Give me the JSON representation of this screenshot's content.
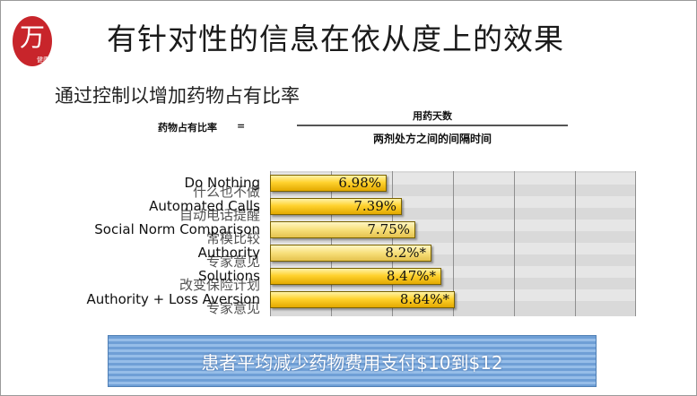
{
  "slide": {
    "title": "有针对性的信息在依从度上的效果",
    "subtitle": "通过控制以增加药物占有比率",
    "formula": {
      "left": "药物占有比率",
      "equals": "=",
      "numerator": "用药天数",
      "denominator": "两剂处方之间的间隔时间"
    },
    "banner_text": "患者平均减少药物费用支付$10到$12",
    "logo_chars": "万",
    "logo_subtext": "健康"
  },
  "chart_data": {
    "type": "bar",
    "orientation": "horizontal",
    "categories": [
      "Do Nothing",
      "Automated Calls",
      "Social Norm Comparison",
      "Authority",
      "Solutions",
      "Authority + Loss Aversion"
    ],
    "categories_overlay": [
      "什么也不做",
      "自动电话提醒",
      "常模比较",
      "专家意见",
      "改变保险计划",
      "专家意见"
    ],
    "values": [
      6.98,
      7.39,
      7.75,
      8.2,
      8.47,
      8.84
    ],
    "value_labels": [
      "6.98%",
      "7.39%",
      "7.75%",
      "8.2%*",
      "8.47%*",
      "8.84%*"
    ],
    "xlim": [
      0,
      10
    ],
    "gridlines": 4,
    "bar_color": "#f5c400"
  }
}
